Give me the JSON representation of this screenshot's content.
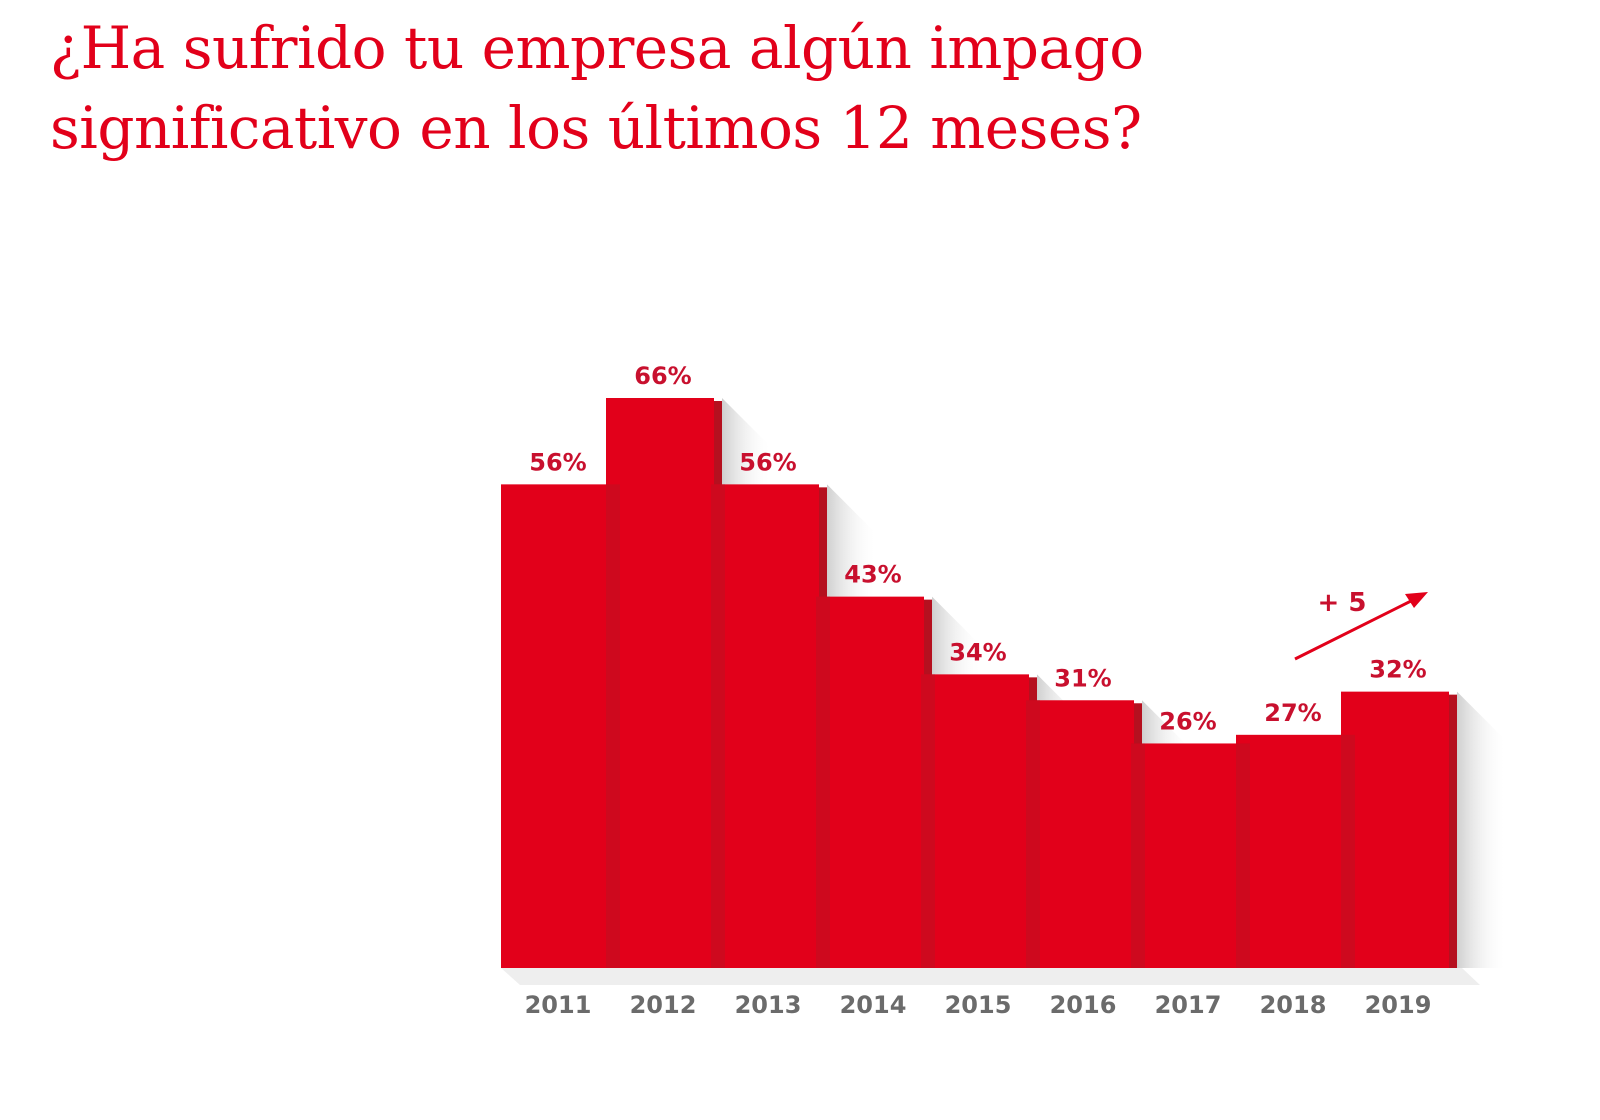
{
  "chart_data": {
    "type": "bar",
    "title": "¿Ha sufrido tu empresa algún impago significativo en los últimos 12 meses?",
    "categories": [
      "2011",
      "2012",
      "2013",
      "2014",
      "2015",
      "2016",
      "2017",
      "2018",
      "2019"
    ],
    "values": [
      56,
      66,
      56,
      43,
      34,
      31,
      26,
      27,
      32
    ],
    "value_labels": [
      "56%",
      "66%",
      "56%",
      "43%",
      "34%",
      "31%",
      "26%",
      "27%",
      "32%"
    ],
    "xlabel": "",
    "ylabel": "",
    "ylim": [
      0,
      66
    ],
    "grid": false,
    "annotation": {
      "text": "+ 5",
      "arrow": "up-right",
      "between": [
        "2018",
        "2019"
      ]
    },
    "colors": {
      "bar": "#e2001a",
      "bar_side": "#b5101f",
      "title": "#e2001a",
      "labels": "#c8102e",
      "axis_text": "#6b6b6b"
    }
  }
}
